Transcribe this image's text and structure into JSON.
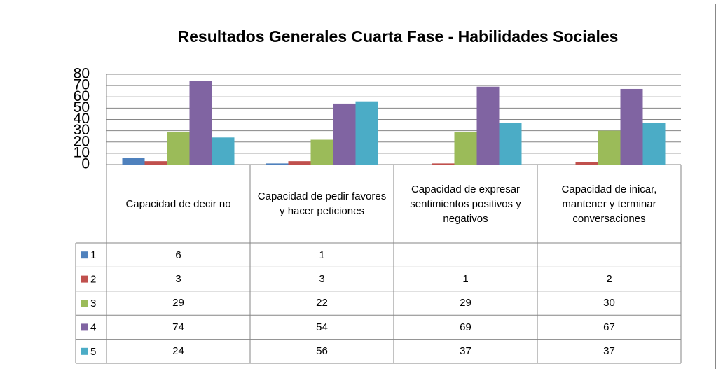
{
  "chart_data": {
    "type": "bar",
    "title": "Resultados Generales Cuarta Fase - Habilidades Sociales",
    "categories": [
      "Capacidad de decir no",
      "Capacidad de pedir favores y hacer peticiones",
      "Capacidad de expresar sentimientos positivos y negativos",
      "Capacidad de inicar, mantener y terminar conversaciones"
    ],
    "series": [
      {
        "name": "1",
        "color": "#4f81bd",
        "values": [
          6,
          1,
          null,
          null
        ]
      },
      {
        "name": "2",
        "color": "#c0504d",
        "values": [
          3,
          3,
          1,
          2
        ]
      },
      {
        "name": "3",
        "color": "#9bbb59",
        "values": [
          29,
          22,
          29,
          30
        ]
      },
      {
        "name": "4",
        "color": "#8064a2",
        "values": [
          74,
          54,
          69,
          67
        ]
      },
      {
        "name": "5",
        "color": "#4bacc6",
        "values": [
          24,
          56,
          37,
          37
        ]
      }
    ],
    "ylim": [
      0,
      80
    ],
    "yticks": [
      0,
      10,
      20,
      30,
      40,
      50,
      60,
      70,
      80
    ],
    "grid": true,
    "data_table": true
  }
}
